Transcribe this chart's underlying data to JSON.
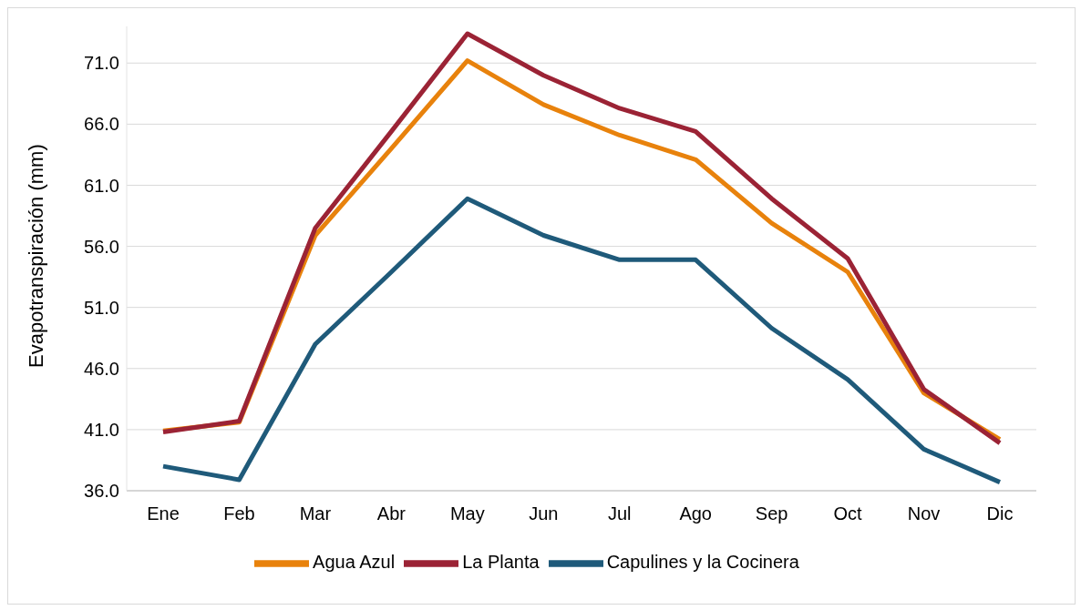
{
  "chart_data": {
    "type": "line",
    "ylabel": "Evapotranspiración (mm)",
    "categories": [
      "Ene",
      "Feb",
      "Mar",
      "Abr",
      "May",
      "Jun",
      "Jul",
      "Ago",
      "Sep",
      "Oct",
      "Nov",
      "Dic"
    ],
    "series": [
      {
        "name": "Agua Azul",
        "color": "#e8820c",
        "values": [
          40.9,
          41.6,
          56.9,
          64.0,
          71.2,
          67.6,
          65.1,
          63.1,
          57.9,
          53.9,
          44.0,
          40.2
        ]
      },
      {
        "name": "La Planta",
        "color": "#9b2335",
        "values": [
          40.8,
          41.7,
          57.5,
          65.4,
          73.4,
          70.0,
          67.3,
          65.4,
          59.9,
          55.0,
          44.3,
          39.9
        ]
      },
      {
        "name": "Capulines y la Cocinera",
        "color": "#1f5a7a",
        "values": [
          38.0,
          36.9,
          48.0,
          53.9,
          59.9,
          56.9,
          54.9,
          54.9,
          49.3,
          45.1,
          39.4,
          36.7
        ]
      }
    ],
    "ylim": [
      36,
      74
    ],
    "yticks": [
      {
        "value": 36,
        "label": "36.0"
      },
      {
        "value": 41,
        "label": "41.0"
      },
      {
        "value": 46,
        "label": "46.0"
      },
      {
        "value": 51,
        "label": "51.0"
      },
      {
        "value": 56,
        "label": "56.0"
      },
      {
        "value": 61,
        "label": "61.0"
      },
      {
        "value": 66,
        "label": "66.0"
      },
      {
        "value": 71,
        "label": "71.0"
      }
    ],
    "grid": "y",
    "legend": "bottom",
    "marker": "none",
    "line_style": "solid"
  }
}
